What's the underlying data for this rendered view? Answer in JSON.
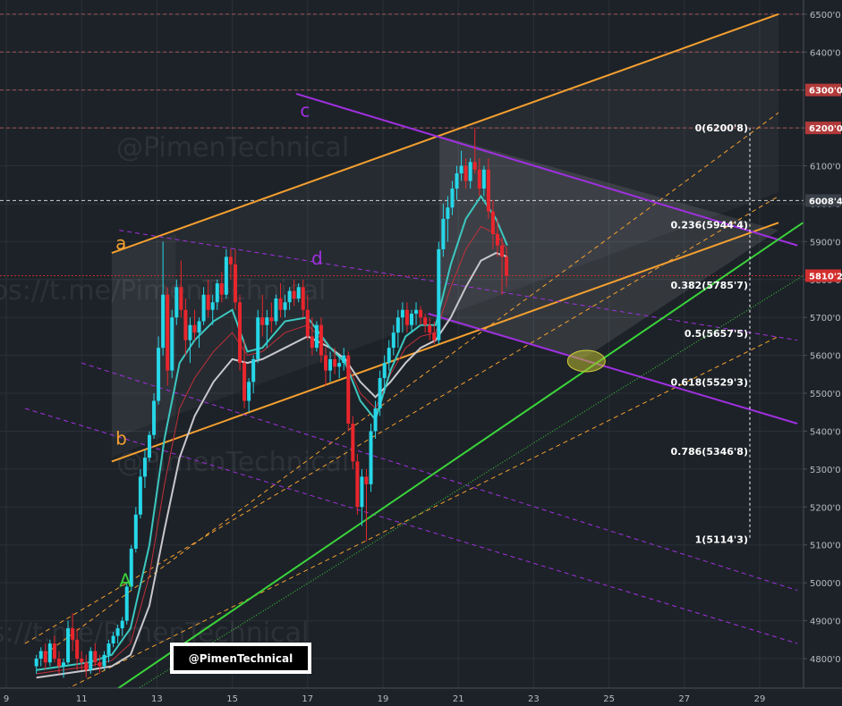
{
  "chart_data": {
    "type": "candlestick",
    "x_ticks": [
      "9",
      "11",
      "13",
      "15",
      "17",
      "19",
      "21",
      "23",
      "25",
      "27",
      "29"
    ],
    "y_ticks": [
      "4800'0",
      "4900'0",
      "5000'0",
      "5100'0",
      "5200'0",
      "5300'0",
      "5400'0",
      "5500'0",
      "5600'0",
      "5700'0",
      "5800'0",
      "5900'0",
      "6000'0",
      "6100'0",
      "6200'0",
      "6300'0",
      "6400'0",
      "6500'0"
    ],
    "y_range": [
      4720,
      6520
    ],
    "x_range": [
      8.9,
      30.15
    ],
    "price_badges": [
      {
        "label": "6300'0",
        "value": 6300,
        "color": "#b23a3a"
      },
      {
        "label": "6200'0",
        "value": 6200,
        "color": "#b23a3a"
      },
      {
        "label": "6008'4",
        "value": 6008.4,
        "color": "#3a4048"
      },
      {
        "label": "5810'2",
        "value": 5810.2,
        "color": "#d32f2f"
      }
    ],
    "fibonacci": {
      "color": "#ffffff",
      "levels": [
        {
          "label": "0(6200'8)",
          "value": 6200.8
        },
        {
          "label": "0.236(5944'4)",
          "value": 5944.4
        },
        {
          "label": "0.382(5785'7)",
          "value": 5785.7
        },
        {
          "label": "0.5(5657'5)",
          "value": 5657.5
        },
        {
          "label": "0.618(5529'3)",
          "value": 5529.3
        },
        {
          "label": "0.786(5346'8)",
          "value": 5346.8
        },
        {
          "label": "1(5114'3)",
          "value": 5114.3
        }
      ]
    },
    "horizontal_levels": [
      6500,
      6400,
      6300,
      6200,
      6008.4,
      5810.2
    ],
    "annotations": [
      {
        "text": "a",
        "color": "#f5a030"
      },
      {
        "text": "b",
        "color": "#f5a030"
      },
      {
        "text": "c",
        "color": "#a030e0"
      },
      {
        "text": "d",
        "color": "#a030e0"
      },
      {
        "text": "A",
        "color": "#3ad43a"
      }
    ],
    "watermarks": [
      "@PimenTechnical",
      "ps://t.me/PimenTechnical",
      "@PimenTechnical",
      "s://t.me/PimenTechnical"
    ],
    "brand_label": "@PimenTechnical",
    "colors": {
      "background": "#1d2228",
      "up": "#26d7e8",
      "down": "#e8262d",
      "orange": "#f5a030",
      "purple": "#a030e0",
      "green": "#3ad43a",
      "ma_teal": "#3cc8c0",
      "ma_gray": "#c8c8cc",
      "ma_red": "#c0303a"
    },
    "candles": [
      [
        9.8,
        4780,
        4810,
        4760,
        4800
      ],
      [
        9.92,
        4800,
        4830,
        4780,
        4820
      ],
      [
        10.04,
        4820,
        4840,
        4770,
        4790
      ],
      [
        10.16,
        4790,
        4850,
        4780,
        4840
      ],
      [
        10.28,
        4840,
        4860,
        4790,
        4800
      ],
      [
        10.4,
        4800,
        4820,
        4760,
        4780
      ],
      [
        10.52,
        4780,
        4800,
        4750,
        4790
      ],
      [
        10.64,
        4790,
        4900,
        4785,
        4880
      ],
      [
        10.76,
        4880,
        4920,
        4820,
        4850
      ],
      [
        10.88,
        4850,
        4880,
        4770,
        4800
      ],
      [
        11.0,
        4800,
        4820,
        4770,
        4790
      ],
      [
        11.12,
        4790,
        4810,
        4750,
        4770
      ],
      [
        11.24,
        4770,
        4830,
        4760,
        4820
      ],
      [
        11.36,
        4820,
        4840,
        4780,
        4790
      ],
      [
        11.48,
        4790,
        4810,
        4760,
        4780
      ],
      [
        11.6,
        4780,
        4820,
        4770,
        4810
      ],
      [
        11.72,
        4810,
        4850,
        4790,
        4840
      ],
      [
        11.84,
        4840,
        4870,
        4830,
        4860
      ],
      [
        11.96,
        4860,
        4890,
        4840,
        4880
      ],
      [
        12.08,
        4880,
        4910,
        4860,
        4900
      ],
      [
        12.2,
        4900,
        5000,
        4890,
        4990
      ],
      [
        12.32,
        4990,
        5100,
        4980,
        5090
      ],
      [
        12.44,
        5090,
        5200,
        5080,
        5180
      ],
      [
        12.56,
        5180,
        5300,
        5170,
        5280
      ],
      [
        12.68,
        5280,
        5350,
        5250,
        5330
      ],
      [
        12.8,
        5330,
        5400,
        5320,
        5390
      ],
      [
        12.92,
        5390,
        5500,
        5380,
        5480
      ],
      [
        13.04,
        5480,
        5650,
        5470,
        5620
      ],
      [
        13.16,
        5620,
        5900,
        5600,
        5760
      ],
      [
        13.28,
        5760,
        5780,
        5520,
        5560
      ],
      [
        13.4,
        5560,
        5720,
        5540,
        5700
      ],
      [
        13.52,
        5700,
        5800,
        5680,
        5780
      ],
      [
        13.64,
        5780,
        5850,
        5700,
        5720
      ],
      [
        13.76,
        5720,
        5750,
        5600,
        5640
      ],
      [
        13.88,
        5640,
        5700,
        5580,
        5680
      ],
      [
        14.0,
        5680,
        5720,
        5640,
        5660
      ],
      [
        14.12,
        5660,
        5700,
        5620,
        5690
      ],
      [
        14.24,
        5690,
        5780,
        5680,
        5760
      ],
      [
        14.36,
        5760,
        5800,
        5700,
        5720
      ],
      [
        14.48,
        5720,
        5760,
        5680,
        5740
      ],
      [
        14.6,
        5740,
        5800,
        5720,
        5790
      ],
      [
        14.72,
        5790,
        5820,
        5740,
        5760
      ],
      [
        14.84,
        5760,
        5880,
        5750,
        5860
      ],
      [
        14.96,
        5860,
        5880,
        5800,
        5840
      ],
      [
        15.08,
        5840,
        5880,
        5720,
        5740
      ],
      [
        15.2,
        5740,
        5760,
        5560,
        5580
      ],
      [
        15.32,
        5580,
        5640,
        5460,
        5480
      ],
      [
        15.44,
        5480,
        5540,
        5450,
        5530
      ],
      [
        15.56,
        5530,
        5600,
        5500,
        5590
      ],
      [
        15.68,
        5590,
        5720,
        5580,
        5700
      ],
      [
        15.8,
        5700,
        5760,
        5650,
        5680
      ],
      [
        15.92,
        5680,
        5720,
        5620,
        5700
      ],
      [
        16.04,
        5700,
        5740,
        5660,
        5690
      ],
      [
        16.16,
        5690,
        5760,
        5680,
        5750
      ],
      [
        16.28,
        5750,
        5790,
        5700,
        5720
      ],
      [
        16.4,
        5720,
        5760,
        5700,
        5740
      ],
      [
        16.52,
        5740,
        5780,
        5720,
        5770
      ],
      [
        16.64,
        5770,
        5800,
        5730,
        5750
      ],
      [
        16.76,
        5750,
        5790,
        5740,
        5780
      ],
      [
        16.88,
        5780,
        5800,
        5700,
        5720
      ],
      [
        17.0,
        5720,
        5760,
        5640,
        5650
      ],
      [
        17.12,
        5650,
        5700,
        5600,
        5620
      ],
      [
        17.24,
        5620,
        5690,
        5610,
        5680
      ],
      [
        17.36,
        5680,
        5700,
        5580,
        5600
      ],
      [
        17.48,
        5600,
        5620,
        5520,
        5560
      ],
      [
        17.6,
        5560,
        5610,
        5530,
        5590
      ],
      [
        17.72,
        5590,
        5620,
        5550,
        5570
      ],
      [
        17.84,
        5570,
        5600,
        5540,
        5580
      ],
      [
        17.96,
        5580,
        5620,
        5560,
        5600
      ],
      [
        18.08,
        5600,
        5610,
        5400,
        5420
      ],
      [
        18.2,
        5420,
        5440,
        5300,
        5320
      ],
      [
        18.32,
        5320,
        5340,
        5180,
        5200
      ],
      [
        18.44,
        5200,
        5300,
        5150,
        5280
      ],
      [
        18.56,
        5280,
        5300,
        5110,
        5260
      ],
      [
        18.68,
        5260,
        5420,
        5240,
        5400
      ],
      [
        18.8,
        5400,
        5480,
        5380,
        5460
      ],
      [
        18.92,
        5460,
        5560,
        5440,
        5540
      ],
      [
        19.04,
        5540,
        5600,
        5500,
        5580
      ],
      [
        19.16,
        5580,
        5640,
        5560,
        5620
      ],
      [
        19.28,
        5620,
        5680,
        5600,
        5660
      ],
      [
        19.4,
        5660,
        5720,
        5620,
        5700
      ],
      [
        19.52,
        5700,
        5740,
        5660,
        5720
      ],
      [
        19.64,
        5720,
        5740,
        5660,
        5680
      ],
      [
        19.76,
        5680,
        5720,
        5660,
        5710
      ],
      [
        19.88,
        5710,
        5740,
        5680,
        5720
      ],
      [
        20.0,
        5720,
        5730,
        5680,
        5700
      ],
      [
        20.12,
        5700,
        5710,
        5660,
        5680
      ],
      [
        20.24,
        5680,
        5700,
        5640,
        5660
      ],
      [
        20.36,
        5660,
        5690,
        5630,
        5640
      ],
      [
        20.48,
        5640,
        5900,
        5630,
        5880
      ],
      [
        20.6,
        5880,
        6000,
        5860,
        5960
      ],
      [
        20.72,
        5960,
        6020,
        5900,
        5990
      ],
      [
        20.84,
        5990,
        6060,
        5970,
        6040
      ],
      [
        20.96,
        6040,
        6100,
        6010,
        6080
      ],
      [
        21.08,
        6080,
        6140,
        6060,
        6100
      ],
      [
        21.2,
        6100,
        6120,
        6040,
        6060
      ],
      [
        21.32,
        6060,
        6120,
        6040,
        6110
      ],
      [
        21.44,
        6110,
        6200,
        6080,
        6090
      ],
      [
        21.56,
        6090,
        6120,
        6020,
        6040
      ],
      [
        21.68,
        6040,
        6100,
        6020,
        6090
      ],
      [
        21.8,
        6090,
        6120,
        5960,
        5980
      ],
      [
        21.92,
        5980,
        6010,
        5880,
        5920
      ],
      [
        22.04,
        5920,
        5960,
        5860,
        5890
      ],
      [
        22.16,
        5890,
        5910,
        5760,
        5860
      ],
      [
        22.28,
        5860,
        5880,
        5780,
        5810
      ]
    ],
    "ma_teal": [
      [
        9.8,
        4770
      ],
      [
        10.5,
        4780
      ],
      [
        11.2,
        4790
      ],
      [
        11.8,
        4810
      ],
      [
        12.3,
        4880
      ],
      [
        12.8,
        5100
      ],
      [
        13.2,
        5380
      ],
      [
        13.6,
        5580
      ],
      [
        14.0,
        5640
      ],
      [
        14.5,
        5690
      ],
      [
        15.0,
        5720
      ],
      [
        15.4,
        5610
      ],
      [
        15.8,
        5620
      ],
      [
        16.4,
        5690
      ],
      [
        17.0,
        5700
      ],
      [
        17.6,
        5620
      ],
      [
        18.0,
        5580
      ],
      [
        18.4,
        5480
      ],
      [
        18.8,
        5430
      ],
      [
        19.2,
        5560
      ],
      [
        19.6,
        5650
      ],
      [
        20.0,
        5680
      ],
      [
        20.4,
        5680
      ],
      [
        20.8,
        5840
      ],
      [
        21.2,
        5960
      ],
      [
        21.6,
        6020
      ],
      [
        22.0,
        5960
      ],
      [
        22.3,
        5890
      ]
    ],
    "ma_gray": [
      [
        9.8,
        4750
      ],
      [
        10.5,
        4760
      ],
      [
        11.2,
        4770
      ],
      [
        11.8,
        4780
      ],
      [
        12.3,
        4810
      ],
      [
        12.8,
        4940
      ],
      [
        13.2,
        5140
      ],
      [
        13.6,
        5330
      ],
      [
        14.0,
        5440
      ],
      [
        14.5,
        5530
      ],
      [
        15.0,
        5590
      ],
      [
        15.4,
        5580
      ],
      [
        15.8,
        5590
      ],
      [
        16.4,
        5620
      ],
      [
        17.0,
        5650
      ],
      [
        17.6,
        5620
      ],
      [
        18.0,
        5590
      ],
      [
        18.4,
        5530
      ],
      [
        18.8,
        5490
      ],
      [
        19.2,
        5530
      ],
      [
        19.6,
        5580
      ],
      [
        20.0,
        5620
      ],
      [
        20.4,
        5640
      ],
      [
        20.8,
        5700
      ],
      [
        21.2,
        5780
      ],
      [
        21.6,
        5850
      ],
      [
        22.0,
        5870
      ],
      [
        22.3,
        5860
      ]
    ],
    "ma_red": [
      [
        9.8,
        4760
      ],
      [
        10.5,
        4770
      ],
      [
        11.2,
        4780
      ],
      [
        11.8,
        4795
      ],
      [
        12.3,
        4840
      ],
      [
        12.8,
        5020
      ],
      [
        13.2,
        5260
      ],
      [
        13.6,
        5460
      ],
      [
        14.0,
        5540
      ],
      [
        14.5,
        5610
      ],
      [
        15.0,
        5660
      ],
      [
        15.4,
        5600
      ],
      [
        15.8,
        5610
      ],
      [
        16.4,
        5660
      ],
      [
        17.0,
        5680
      ],
      [
        17.6,
        5620
      ],
      [
        18.0,
        5590
      ],
      [
        18.4,
        5500
      ],
      [
        18.8,
        5460
      ],
      [
        19.2,
        5550
      ],
      [
        19.6,
        5620
      ],
      [
        20.0,
        5650
      ],
      [
        20.4,
        5660
      ],
      [
        20.8,
        5780
      ],
      [
        21.2,
        5880
      ],
      [
        21.6,
        5940
      ],
      [
        22.0,
        5920
      ],
      [
        22.3,
        5880
      ]
    ]
  }
}
